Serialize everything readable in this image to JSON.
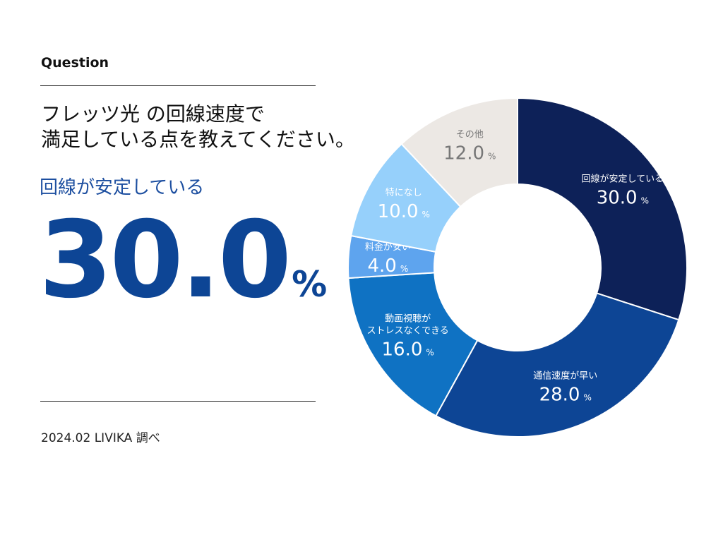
{
  "header": {
    "label": "Question"
  },
  "title": {
    "line1": "フレッツ光 の回線速度で",
    "line2": "満足している点を教えてください。"
  },
  "highlight": {
    "label": "回線が安定している",
    "value": "30.0",
    "unit": "%"
  },
  "source": "2024.02 LIVIKA 調べ",
  "chart_data": {
    "type": "pie",
    "style": "donut",
    "unit": "%",
    "slices": [
      {
        "label": "回線が安定している",
        "value": 30.0,
        "color": "#0d2158"
      },
      {
        "label": "通信速度が早い",
        "value": 28.0,
        "color": "#0d4595"
      },
      {
        "label": "動画視聴がストレスなくできる",
        "lines": [
          "動画視聴が",
          "ストレスなくできる"
        ],
        "value": 16.0,
        "color": "#0f72c3"
      },
      {
        "label": "料金が安い",
        "value": 4.0,
        "color": "#5ea4ee"
      },
      {
        "label": "特になし",
        "value": 10.0,
        "color": "#96d0fb"
      },
      {
        "label": "その他",
        "value": 12.0,
        "color": "#ece8e4"
      }
    ]
  }
}
